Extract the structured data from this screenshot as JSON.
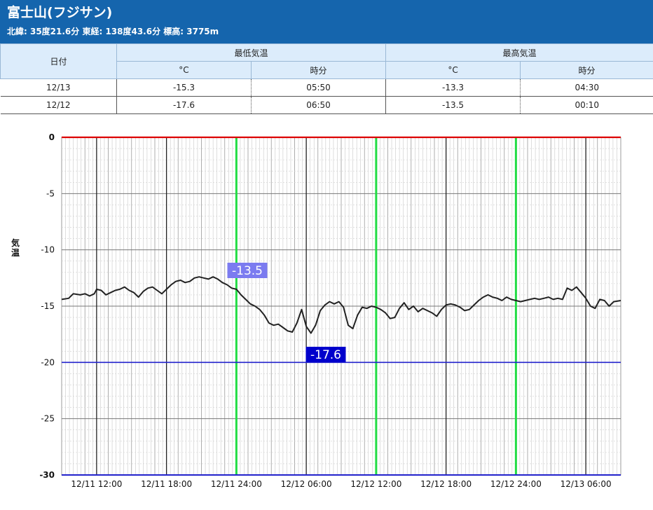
{
  "station": {
    "title": "富士山(フジサン)",
    "info": "北緯: 35度21.6分 東経: 138度43.6分 標高: 3775m"
  },
  "summary_table": {
    "col_date": "日付",
    "group_min": "最低気温",
    "group_max": "最高気温",
    "unit_c": "°C",
    "unit_time": "時分",
    "rows": [
      {
        "date": "12/13",
        "min": "-15.3",
        "min_time": "05:50",
        "max": "-13.3",
        "max_time": "04:30"
      },
      {
        "date": "12/12",
        "min": "-17.6",
        "min_time": "06:50",
        "max": "-13.5",
        "max_time": "00:10"
      }
    ]
  },
  "colors": {
    "header_bg": "#1565ad",
    "line": "#222222",
    "max_line": "#dd0000",
    "min_line": "#2222cc",
    "day_marker": "#22dd44",
    "max_label_bg": "#7b7bf0",
    "min_label_bg": "#0000cc"
  },
  "chart_data": {
    "type": "line",
    "ylabel": "気温",
    "ylim": [
      -30,
      0
    ],
    "yticks": [
      0,
      -5,
      -10,
      -15,
      -20,
      -25,
      -30
    ],
    "x_unit": "hours from 12/11 07:00",
    "xlim": [
      0,
      24.0
    ],
    "xticks": [
      {
        "t": 1.5,
        "label": "12/11 12:00"
      },
      {
        "t": 4.5,
        "label": "12/11 18:00"
      },
      {
        "t": 7.5,
        "label": "12/11 24:00"
      },
      {
        "t": 10.5,
        "label": "12/12 06:00"
      },
      {
        "t": 13.5,
        "label": "12/12 12:00"
      },
      {
        "t": 16.5,
        "label": "12/12 18:00"
      },
      {
        "t": 19.5,
        "label": "12/12 24:00"
      },
      {
        "t": 22.5,
        "label": "12/13 06:00"
      }
    ],
    "day_markers": [
      7.5,
      13.5,
      19.5
    ],
    "grid": true,
    "max_label": "-13.5",
    "min_label": "-17.6",
    "series": [
      {
        "x": [
          0,
          0.3,
          0.5,
          0.8,
          1.0,
          1.2,
          1.4,
          1.5,
          1.7,
          1.9,
          2.1,
          2.3,
          2.5,
          2.7,
          2.9,
          3.1,
          3.3,
          3.5,
          3.7,
          3.9,
          4.1,
          4.3,
          4.5,
          4.7,
          4.9,
          5.1,
          5.3,
          5.5,
          5.7,
          5.9,
          6.1,
          6.3,
          6.5,
          6.7,
          6.9,
          7.1,
          7.3,
          7.5,
          7.7,
          7.9,
          8.1,
          8.3,
          8.5,
          8.7,
          8.9,
          9.1,
          9.3,
          9.5,
          9.7,
          9.9,
          10.1,
          10.3,
          10.5,
          10.7,
          10.9,
          11.1,
          11.3,
          11.5,
          11.7,
          11.9,
          12.1,
          12.3,
          12.5,
          12.7,
          12.9,
          13.1,
          13.3,
          13.5,
          13.7,
          13.9,
          14.1,
          14.3,
          14.5,
          14.7,
          14.9,
          15.1,
          15.3,
          15.5,
          15.7,
          15.9,
          16.1,
          16.3,
          16.5,
          16.7,
          16.9,
          17.1,
          17.3,
          17.5,
          17.7,
          17.9,
          18.1,
          18.3,
          18.5,
          18.7,
          18.9,
          19.1,
          19.3,
          19.5,
          19.7,
          19.9,
          20.1,
          20.3,
          20.5,
          20.7,
          20.9,
          21.1,
          21.3,
          21.5,
          21.7,
          21.9,
          22.1,
          22.3,
          22.5,
          22.7,
          22.9,
          23.1,
          23.3,
          23.5,
          23.7,
          24.0
        ],
        "y": [
          -14.4,
          -14.3,
          -13.9,
          -14.0,
          -13.9,
          -14.1,
          -13.9,
          -13.5,
          -13.6,
          -14.0,
          -13.8,
          -13.6,
          -13.5,
          -13.3,
          -13.6,
          -13.8,
          -14.2,
          -13.7,
          -13.4,
          -13.3,
          -13.6,
          -13.9,
          -13.5,
          -13.1,
          -12.8,
          -12.7,
          -12.9,
          -12.8,
          -12.5,
          -12.4,
          -12.5,
          -12.6,
          -12.4,
          -12.6,
          -12.9,
          -13.1,
          -13.4,
          -13.5,
          -14.0,
          -14.4,
          -14.8,
          -15.0,
          -15.3,
          -15.8,
          -16.5,
          -16.7,
          -16.6,
          -16.9,
          -17.2,
          -17.3,
          -16.5,
          -15.3,
          -16.8,
          -17.4,
          -16.7,
          -15.4,
          -14.9,
          -14.6,
          -14.8,
          -14.6,
          -15.1,
          -16.7,
          -17.0,
          -15.8,
          -15.1,
          -15.2,
          -15.0,
          -15.1,
          -15.3,
          -15.6,
          -16.1,
          -16.0,
          -15.2,
          -14.7,
          -15.3,
          -15.0,
          -15.5,
          -15.2,
          -15.4,
          -15.6,
          -15.9,
          -15.3,
          -14.9,
          -14.8,
          -14.9,
          -15.1,
          -15.4,
          -15.3,
          -14.9,
          -14.5,
          -14.2,
          -14.0,
          -14.2,
          -14.3,
          -14.5,
          -14.2,
          -14.4,
          -14.5,
          -14.6,
          -14.5,
          -14.4,
          -14.3,
          -14.4,
          -14.3,
          -14.2,
          -14.4,
          -14.3,
          -14.4,
          -13.4,
          -13.6,
          -13.3,
          -13.8,
          -14.3,
          -15.0,
          -15.2,
          -14.4,
          -14.5,
          -15.0,
          -14.6,
          -14.5
        ]
      }
    ]
  }
}
